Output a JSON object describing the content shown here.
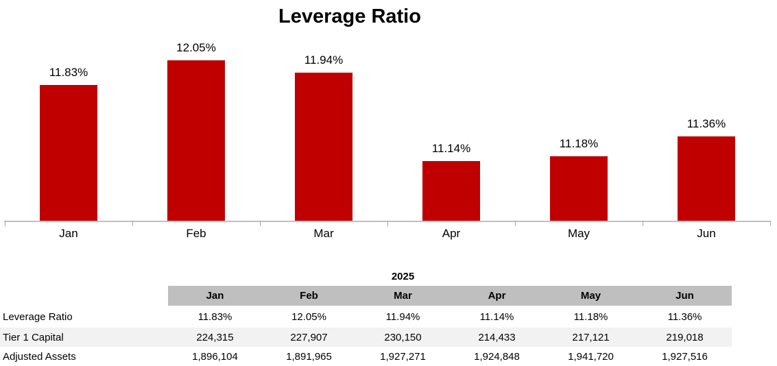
{
  "chart": {
    "bar_color": "#C00000",
    "axis_color": "#BFBFBF"
  },
  "chart_data": {
    "type": "bar",
    "title": "Leverage Ratio",
    "categories": [
      "Jan",
      "Feb",
      "Mar",
      "Apr",
      "May",
      "Jun"
    ],
    "values": [
      11.83,
      12.05,
      11.94,
      11.14,
      11.18,
      11.36
    ],
    "data_labels": [
      "11.83%",
      "12.05%",
      "11.94%",
      "11.14%",
      "11.18%",
      "11.36%"
    ],
    "xlabel": "",
    "ylabel": "",
    "ylim": [
      10.6,
      12.2
    ],
    "grid": false,
    "legend": false,
    "bar_color": "#C00000"
  },
  "table": {
    "year_header": "2025",
    "columns": [
      "Jan",
      "Feb",
      "Mar",
      "Apr",
      "May",
      "Jun"
    ],
    "rows": [
      {
        "label": "Leverage Ratio",
        "values": [
          "11.83%",
          "12.05%",
          "11.94%",
          "11.14%",
          "11.18%",
          "11.36%"
        ]
      },
      {
        "label": "Tier 1 Capital",
        "values": [
          "224,315",
          "227,907",
          "230,150",
          "214,433",
          "217,121",
          "219,018"
        ]
      },
      {
        "label": "Adjusted Assets",
        "values": [
          "1,896,104",
          "1,891,965",
          "1,927,271",
          "1,924,848",
          "1,941,720",
          "1,927,516"
        ]
      }
    ],
    "header_bg": "#BFBFBF",
    "stripe_bg": "#F2F2F2"
  }
}
